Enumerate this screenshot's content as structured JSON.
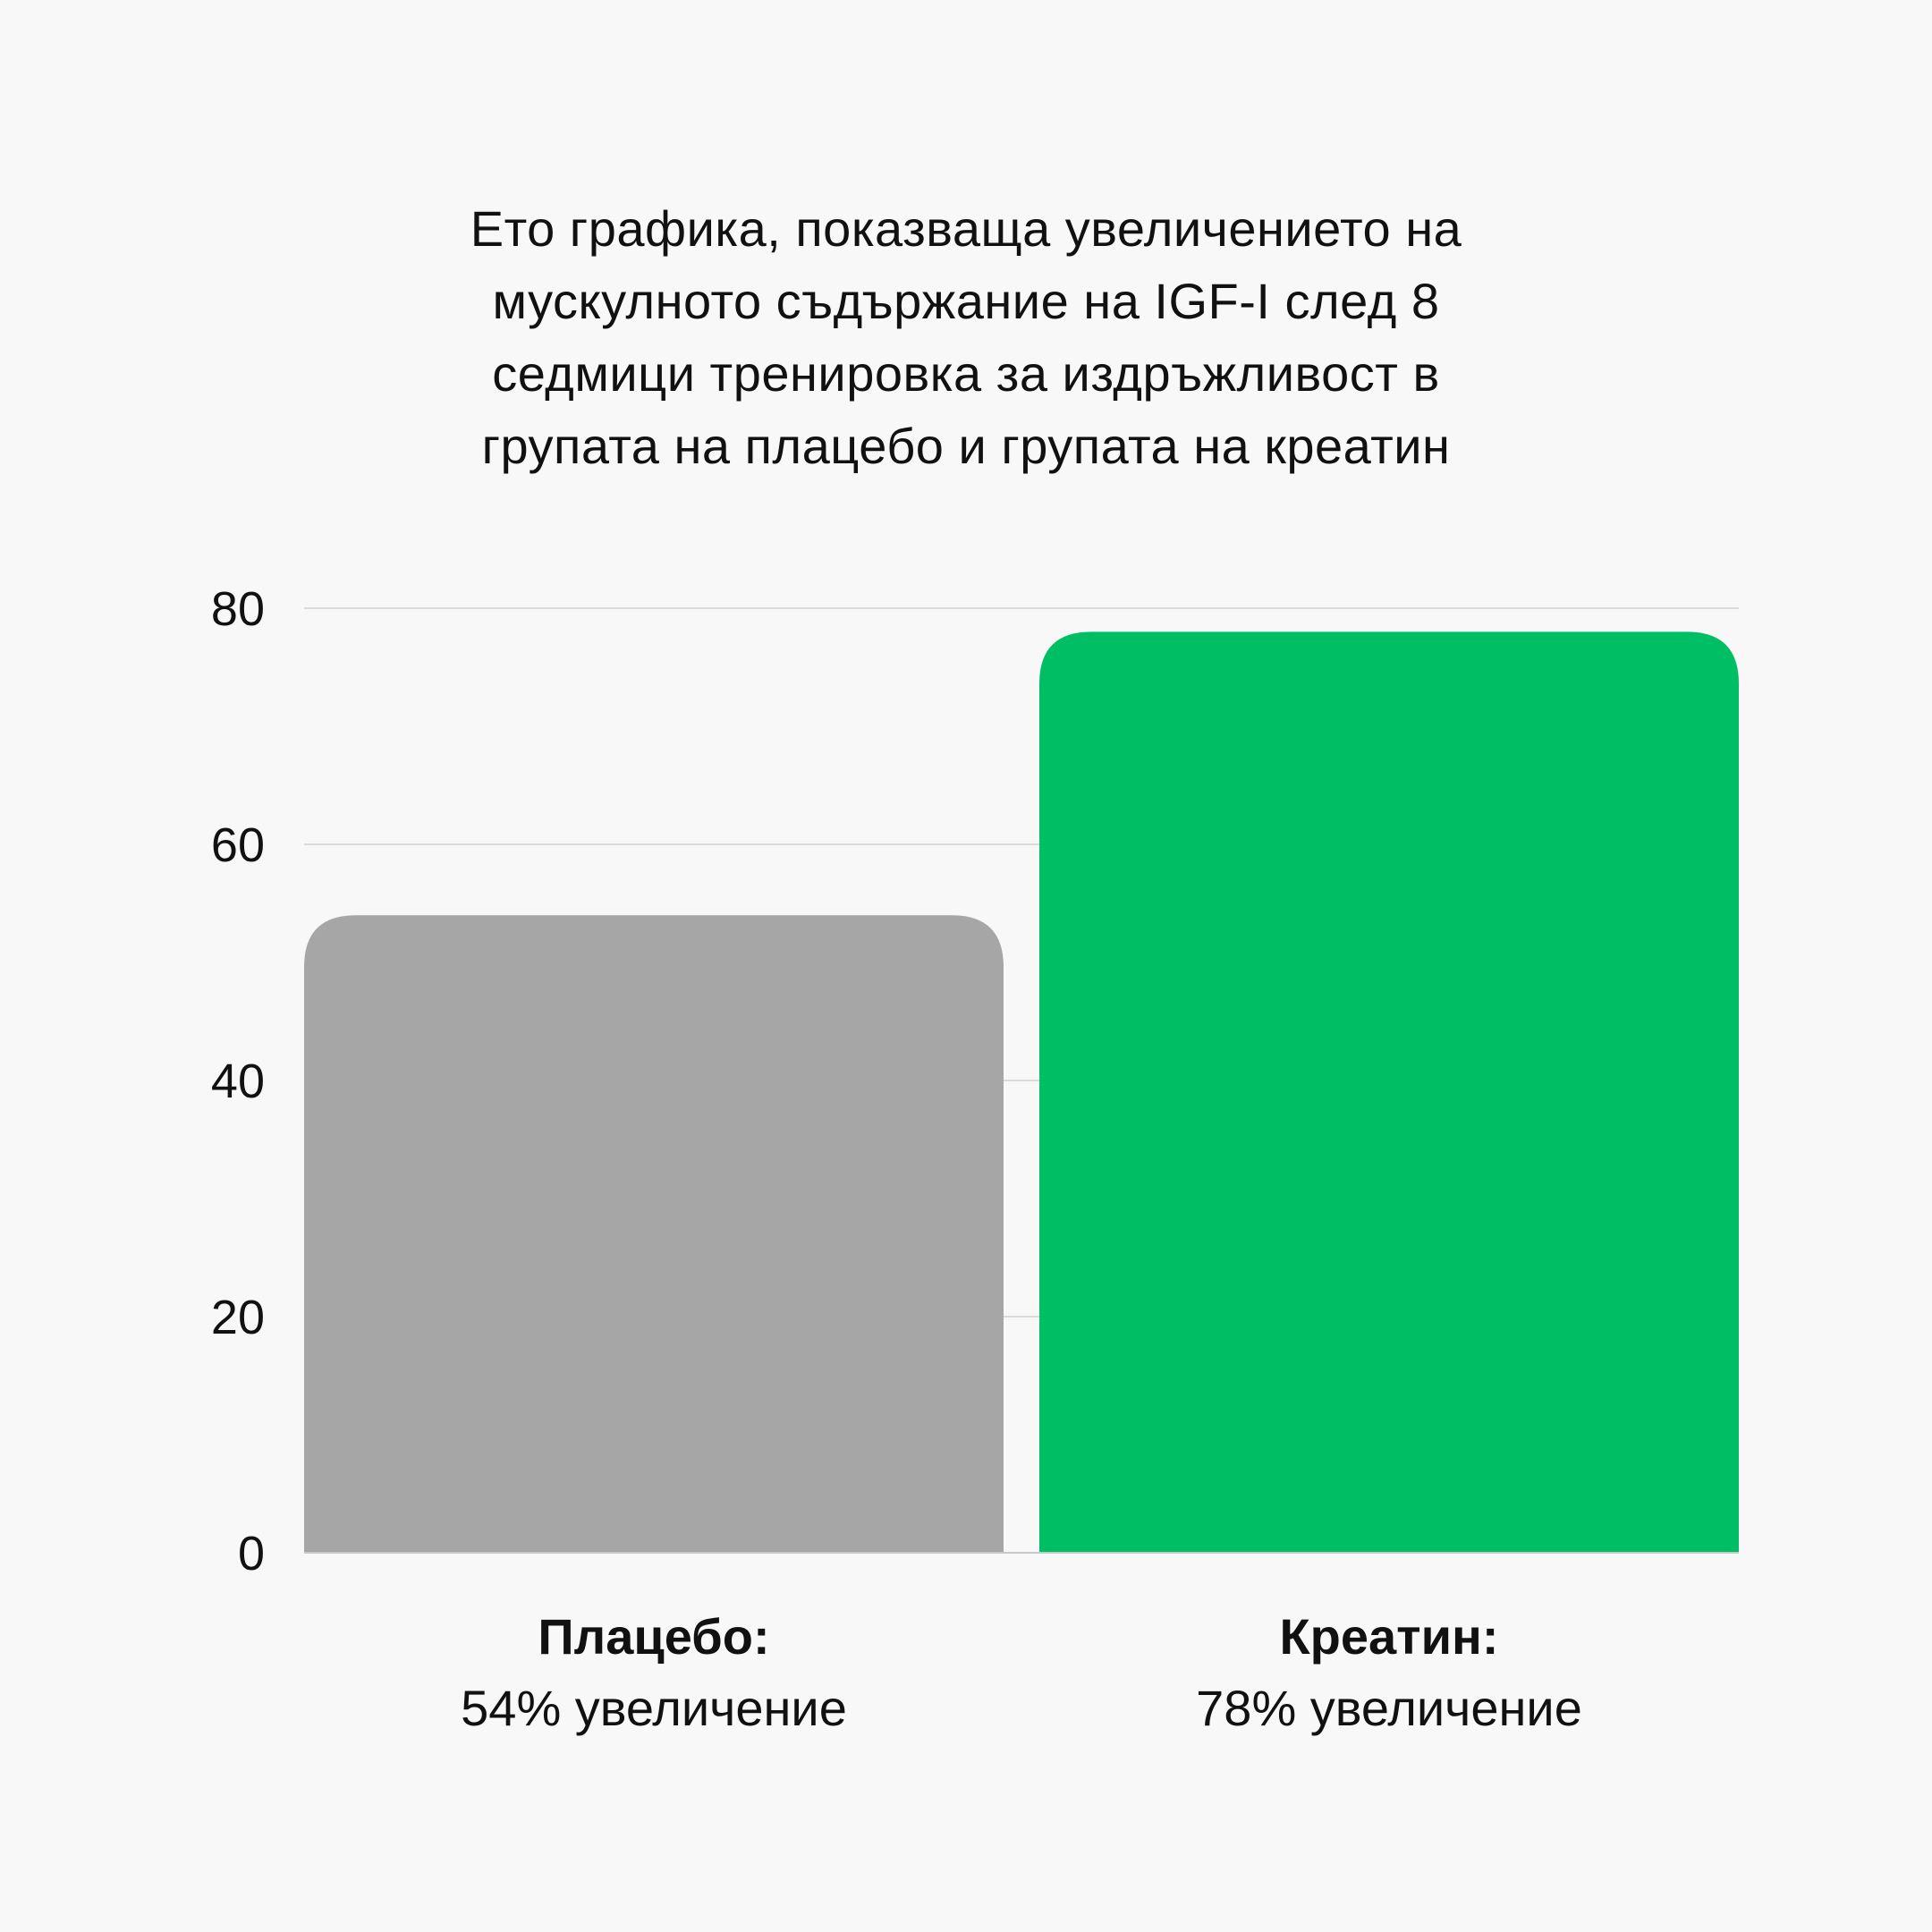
{
  "chart_data": {
    "type": "bar",
    "title_lines": [
      "Ето графика, показваща увеличението на",
      "мускулното съдържание на IGF-I след 8",
      "седмици тренировка за издръжливост в",
      "групата на плацебо и групата на креатин"
    ],
    "categories": [
      "Плацебо:",
      "Креатин:"
    ],
    "value_labels": [
      "54% увеличение",
      "78% увеличение"
    ],
    "values": [
      54,
      78
    ],
    "colors": [
      "#a6a6a6",
      "#00be64"
    ],
    "ylim": [
      0,
      80
    ],
    "yticks": [
      "0",
      "20",
      "40",
      "60",
      "80"
    ],
    "grid": true,
    "legend": "none"
  }
}
